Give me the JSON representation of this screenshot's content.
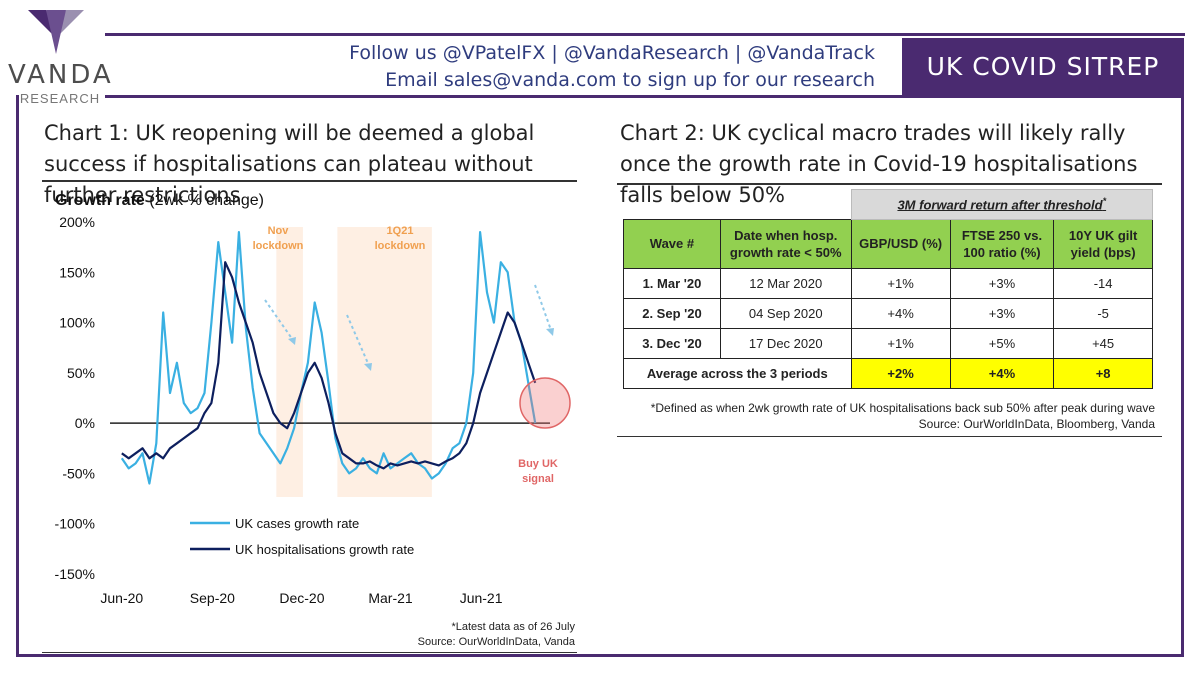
{
  "header": {
    "brand": "VANDA",
    "brand_sub": "RESEARCH",
    "follow_line": "Follow us @VPatelFX | @VandaResearch | @VandaTrack",
    "email_line": "Email sales@vanda.com to sign up for our research",
    "badge": "UK COVID SITREP"
  },
  "colors": {
    "purple": "#4a2a70",
    "cases": "#3ab0e2",
    "hosp": "#0d1f5e",
    "green": "#92d050",
    "yellow": "#ffff00",
    "shade": "#fde9d9",
    "signal": "#e06666"
  },
  "chart1": {
    "title": "Chart 1: UK reopening will be deemed a global success if hospitalisations can plateau without further restrictions",
    "subtitle_bold": "Growth rate",
    "subtitle_rest": " (2wk % change)",
    "annotations": [
      "Nov",
      "lockdown",
      "1Q21",
      "lockdown",
      "Buy UK",
      "signal"
    ],
    "footnote": "*Latest data as of 26 July",
    "source": "Source: OurWorldInData, Vanda"
  },
  "chart_data": {
    "type": "line",
    "title": "Growth rate (2wk % change)",
    "xlabel": "",
    "ylabel": "",
    "x_ticks": [
      "Jun-20",
      "Sep-20",
      "Dec-20",
      "Mar-21",
      "Jun-21"
    ],
    "y_ticks": [
      "200%",
      "150%",
      "100%",
      "50%",
      "0%",
      "-50%",
      "-100%",
      "-150%"
    ],
    "ylim": [
      -150,
      200
    ],
    "grid": false,
    "legend_position": "bottom-left",
    "shaded_periods": [
      {
        "label": "Nov lockdown",
        "start": "2020-11-05",
        "end": "2020-12-02"
      },
      {
        "label": "1Q21 lockdown",
        "start": "2021-01-06",
        "end": "2021-04-12"
      }
    ],
    "series": [
      {
        "name": "UK cases growth rate",
        "x": [
          "2020-06-01",
          "2020-06-08",
          "2020-06-15",
          "2020-06-22",
          "2020-06-29",
          "2020-07-06",
          "2020-07-13",
          "2020-07-20",
          "2020-07-27",
          "2020-08-03",
          "2020-08-10",
          "2020-08-17",
          "2020-08-24",
          "2020-08-31",
          "2020-09-07",
          "2020-09-14",
          "2020-09-21",
          "2020-09-28",
          "2020-10-05",
          "2020-10-12",
          "2020-10-19",
          "2020-10-26",
          "2020-11-02",
          "2020-11-09",
          "2020-11-16",
          "2020-11-23",
          "2020-11-30",
          "2020-12-07",
          "2020-12-14",
          "2020-12-21",
          "2020-12-28",
          "2021-01-04",
          "2021-01-11",
          "2021-01-18",
          "2021-01-25",
          "2021-02-01",
          "2021-02-08",
          "2021-02-15",
          "2021-02-22",
          "2021-03-01",
          "2021-03-08",
          "2021-03-15",
          "2021-03-22",
          "2021-03-29",
          "2021-04-05",
          "2021-04-12",
          "2021-04-19",
          "2021-04-26",
          "2021-05-03",
          "2021-05-10",
          "2021-05-17",
          "2021-05-24",
          "2021-05-31",
          "2021-06-07",
          "2021-06-14",
          "2021-06-21",
          "2021-06-28",
          "2021-07-05",
          "2021-07-12",
          "2021-07-19",
          "2021-07-26"
        ],
        "values": [
          -35,
          -45,
          -40,
          -30,
          -60,
          -20,
          110,
          30,
          60,
          20,
          10,
          15,
          30,
          100,
          180,
          130,
          80,
          190,
          95,
          35,
          -10,
          -20,
          -30,
          -40,
          -25,
          -5,
          30,
          60,
          120,
          90,
          40,
          -15,
          -40,
          -50,
          -45,
          -35,
          -45,
          -50,
          -30,
          -45,
          -40,
          -35,
          -30,
          -40,
          -45,
          -55,
          -50,
          -40,
          -25,
          -20,
          0,
          50,
          190,
          130,
          100,
          160,
          150,
          100,
          80,
          40,
          0
        ]
      },
      {
        "name": "UK hospitalisations growth rate",
        "x": [
          "2020-06-01",
          "2020-06-08",
          "2020-06-15",
          "2020-06-22",
          "2020-06-29",
          "2020-07-06",
          "2020-07-13",
          "2020-07-20",
          "2020-07-27",
          "2020-08-03",
          "2020-08-10",
          "2020-08-17",
          "2020-08-24",
          "2020-08-31",
          "2020-09-07",
          "2020-09-14",
          "2020-09-21",
          "2020-09-28",
          "2020-10-05",
          "2020-10-12",
          "2020-10-19",
          "2020-10-26",
          "2020-11-02",
          "2020-11-09",
          "2020-11-16",
          "2020-11-23",
          "2020-11-30",
          "2020-12-07",
          "2020-12-14",
          "2020-12-21",
          "2020-12-28",
          "2021-01-04",
          "2021-01-11",
          "2021-01-18",
          "2021-01-25",
          "2021-02-01",
          "2021-02-08",
          "2021-02-15",
          "2021-02-22",
          "2021-03-01",
          "2021-03-08",
          "2021-03-15",
          "2021-03-22",
          "2021-03-29",
          "2021-04-05",
          "2021-04-12",
          "2021-04-19",
          "2021-04-26",
          "2021-05-03",
          "2021-05-10",
          "2021-05-17",
          "2021-05-24",
          "2021-05-31",
          "2021-06-07",
          "2021-06-14",
          "2021-06-21",
          "2021-06-28",
          "2021-07-05",
          "2021-07-12",
          "2021-07-19",
          "2021-07-26"
        ],
        "values": [
          -30,
          -35,
          -30,
          -25,
          -35,
          -30,
          -35,
          -25,
          -20,
          -15,
          -10,
          -5,
          10,
          20,
          60,
          160,
          145,
          120,
          100,
          80,
          50,
          30,
          10,
          0,
          -5,
          10,
          30,
          50,
          60,
          45,
          20,
          -10,
          -30,
          -35,
          -40,
          -40,
          -38,
          -42,
          -45,
          -40,
          -42,
          -40,
          -38,
          -40,
          -38,
          -40,
          -42,
          -38,
          -35,
          -30,
          -20,
          0,
          30,
          50,
          70,
          90,
          110,
          100,
          80,
          60,
          40
        ]
      }
    ]
  },
  "chart2": {
    "title": "Chart 2: UK cyclical macro trades will likely rally once the growth rate in Covid-19 hospitalisations falls below 50%",
    "group_header": "3M forward return after threshold",
    "group_mark": "*",
    "columns": [
      "Wave #",
      "Date when hosp. growth rate < 50%",
      "GBP/USD (%)",
      "FTSE 250 vs. 100 ratio (%)",
      "10Y UK gilt yield (bps)"
    ],
    "rows": [
      [
        "1. Mar '20",
        "12 Mar 2020",
        "+1%",
        "+3%",
        "-14"
      ],
      [
        "2. Sep '20",
        "04 Sep 2020",
        "+4%",
        "+3%",
        "-5"
      ],
      [
        "3. Dec '20",
        "17 Dec 2020",
        "+1%",
        "+5%",
        "+45"
      ]
    ],
    "average_label": "Average across the 3 periods",
    "average": [
      "+2%",
      "+4%",
      "+8"
    ],
    "footnote": "*Defined as when 2wk growth rate of UK hospitalisations back sub 50% after peak during wave",
    "source": "Source: OurWorldInData, Bloomberg, Vanda"
  }
}
